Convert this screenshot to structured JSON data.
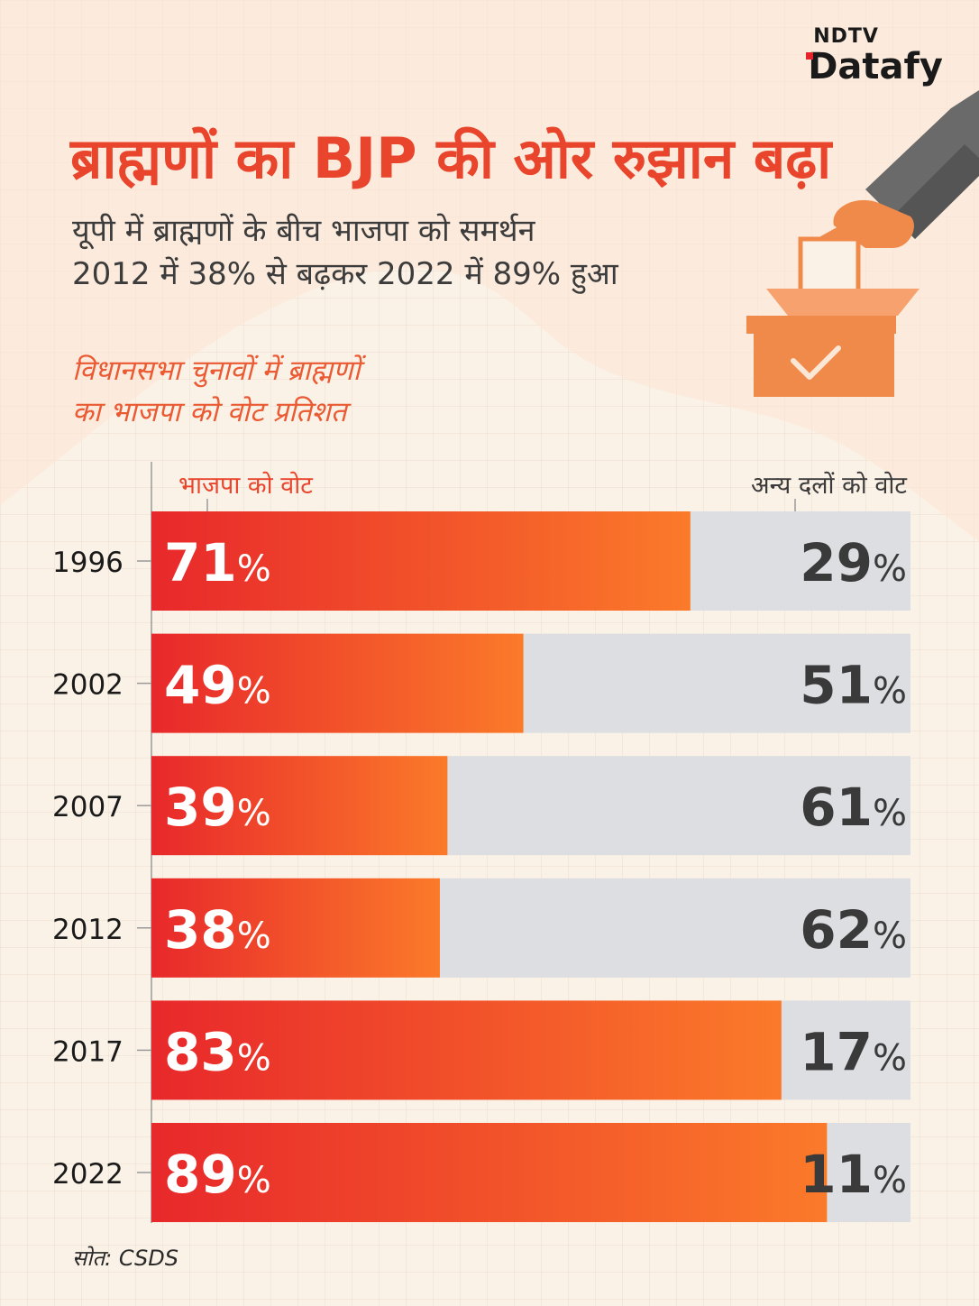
{
  "brand": {
    "top": "NDTV",
    "bottom": "Datafy"
  },
  "title": "ब्राह्मणों का BJP की ओर रुझान बढ़ा",
  "subtitle": {
    "line1": "यूपी में ब्राह्मणों के बीच भाजपा को समर्थन",
    "line2": "2012 में 38% से बढ़कर 2022 में 89% हुआ"
  },
  "source": "सोत: CSDS",
  "colors": {
    "bjp_start": "#e8282b",
    "bjp_end": "#fb7a2a",
    "others": "#dcdee2",
    "accent": "#e8452c"
  },
  "chart_data": {
    "type": "bar",
    "stacked": true,
    "orientation": "horizontal",
    "title": "विधानसभा चुनावों में ब्राह्मणों का भाजपा को वोट प्रतिशत",
    "title_lines": [
      "विधानसभा चुनावों में ब्राह्मणों",
      "का भाजपा को वोट प्रतिशत"
    ],
    "categories": [
      "1996",
      "2002",
      "2007",
      "2012",
      "2017",
      "2022"
    ],
    "series": [
      {
        "name": "भाजपा को वोट",
        "values": [
          71,
          49,
          39,
          38,
          83,
          89
        ]
      },
      {
        "name": "अन्य दलों को वोट",
        "values": [
          29,
          51,
          61,
          62,
          17,
          11
        ]
      }
    ],
    "unit": "%",
    "xlim": [
      0,
      100
    ],
    "legend": "top"
  }
}
